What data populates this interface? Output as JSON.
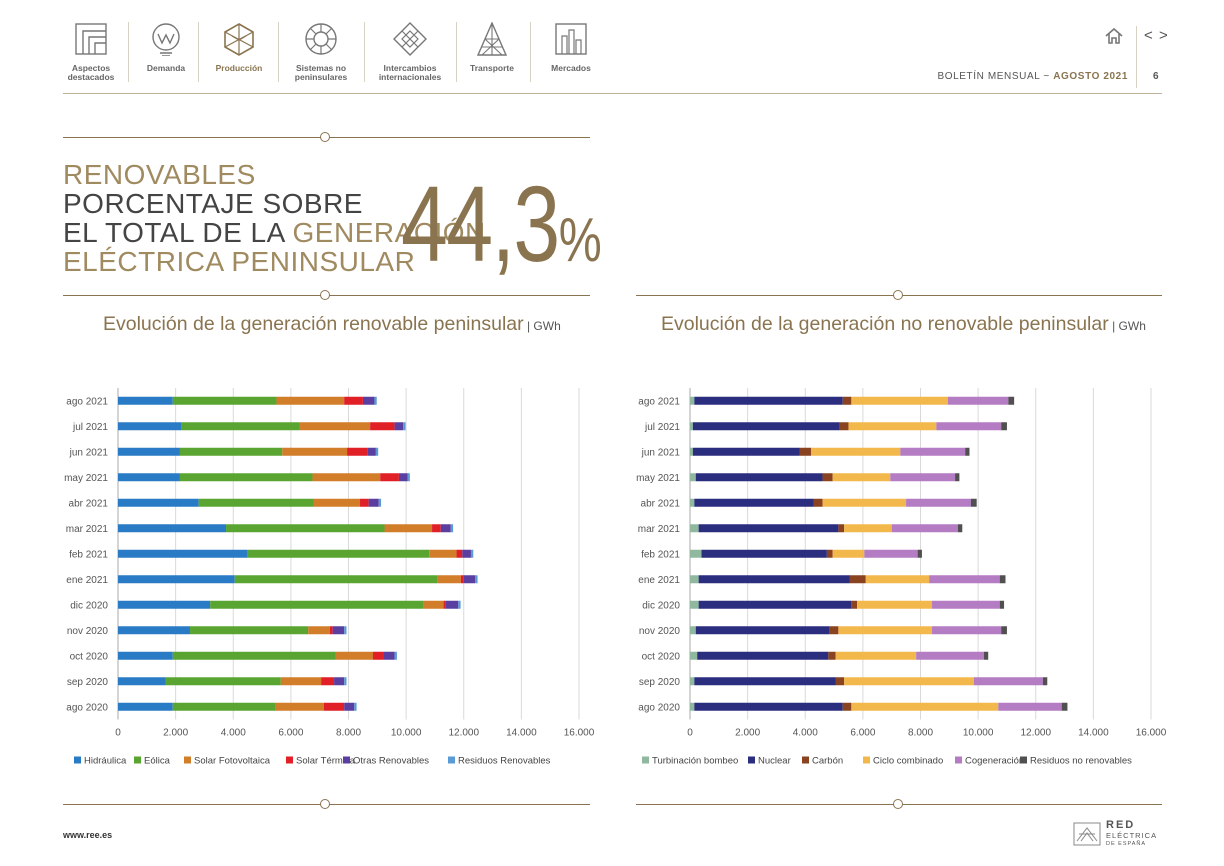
{
  "nav": {
    "items": [
      {
        "label1": "Aspectos",
        "label2": "destacados"
      },
      {
        "label1": "Demanda",
        "label2": ""
      },
      {
        "label1": "Producción",
        "label2": ""
      },
      {
        "label1": "Sistemas no",
        "label2": "peninsulares"
      },
      {
        "label1": "Intercambios",
        "label2": "internacionales"
      },
      {
        "label1": "Transporte",
        "label2": ""
      },
      {
        "label1": "Mercados",
        "label2": ""
      }
    ],
    "prev": "<",
    "next": ">"
  },
  "header": {
    "bulletin": "BOLETÍN MENSUAL ~ ",
    "month": "AGOSTO 2021",
    "page": "6"
  },
  "headline": {
    "line1": "RENOVABLES",
    "line2": "PORCENTAJE SOBRE",
    "line3a": "EL TOTAL DE LA ",
    "line3b": "GENERACIÓN",
    "line4": "ELÉCTRICA PENINSULAR",
    "value": "44,3",
    "pct": "%"
  },
  "footer": {
    "url": "www.ree.es",
    "logo1": "RED",
    "logo2": "ELÉCTRICA",
    "logo3": "DE ESPAÑA"
  },
  "colors": {
    "gold": "#8a7450",
    "hidraulica": "#2a7bc6",
    "eolica": "#5aa532",
    "solar_fv": "#d27d2a",
    "solar_termica": "#e01f27",
    "otras_renov": "#5a3fa0",
    "residuos_renov": "#5b9bd5",
    "turbinacion": "#8fb89f",
    "nuclear": "#2b2d7e",
    "carbon": "#8a4321",
    "ciclo": "#f2b84b",
    "cogeneracion": "#b37cc3",
    "residuos_no_renov": "#505050"
  },
  "chart_data": [
    {
      "type": "bar",
      "orientation": "horizontal",
      "stacked": true,
      "title": "Evolución de la generación renovable peninsular",
      "unit": "GWh",
      "categories": [
        "ago 2021",
        "jul 2021",
        "jun 2021",
        "may 2021",
        "abr 2021",
        "mar 2021",
        "feb 2021",
        "ene 2021",
        "dic 2020",
        "nov 2020",
        "oct 2020",
        "sep 2020",
        "ago 2020"
      ],
      "xlim": [
        0,
        16000
      ],
      "ticks": [
        "0",
        "2.000",
        "4.000",
        "6.000",
        "8.000",
        "10.000",
        "12.000",
        "14.000",
        "16.000"
      ],
      "series": [
        {
          "name": "Hidráulica",
          "color": "#2a7bc6",
          "values": [
            1900,
            2200,
            2150,
            2150,
            2800,
            3750,
            4500,
            4050,
            3200,
            2500,
            1900,
            1650,
            1900
          ]
        },
        {
          "name": "Eólica",
          "color": "#5aa532",
          "values": [
            3600,
            4100,
            3550,
            4600,
            4000,
            5500,
            6300,
            7050,
            7400,
            4100,
            5650,
            4000,
            3550
          ]
        },
        {
          "name": "Solar Fotovoltaica",
          "color": "#d27d2a",
          "values": [
            2350,
            2450,
            2250,
            2350,
            1600,
            1650,
            950,
            800,
            700,
            750,
            1300,
            1400,
            1700
          ]
        },
        {
          "name": "Solar Térmica",
          "color": "#e01f27",
          "values": [
            650,
            850,
            700,
            650,
            300,
            300,
            200,
            100,
            60,
            100,
            350,
            450,
            700
          ]
        },
        {
          "name": "Otras Renovables",
          "color": "#5a3fa0",
          "values": [
            400,
            300,
            300,
            300,
            350,
            350,
            300,
            400,
            450,
            400,
            400,
            350,
            350
          ]
        },
        {
          "name": "Residuos Renovables",
          "color": "#5b9bd5",
          "values": [
            80,
            80,
            80,
            80,
            80,
            80,
            80,
            80,
            80,
            80,
            80,
            80,
            80
          ]
        }
      ]
    },
    {
      "type": "bar",
      "orientation": "horizontal",
      "stacked": true,
      "title": "Evolución de la generación no renovable peninsular",
      "unit": "GWh",
      "categories": [
        "ago 2021",
        "jul 2021",
        "jun 2021",
        "may 2021",
        "abr 2021",
        "mar 2021",
        "feb 2021",
        "ene 2021",
        "dic 2020",
        "nov 2020",
        "oct 2020",
        "sep 2020",
        "ago 2020"
      ],
      "xlim": [
        0,
        16000
      ],
      "ticks": [
        "0",
        "2.000",
        "4.000",
        "6.000",
        "8.000",
        "10.000",
        "12.000",
        "14.000",
        "16.000"
      ],
      "series": [
        {
          "name": "Turbinación bombeo",
          "color": "#8fb89f",
          "values": [
            150,
            100,
            100,
            200,
            150,
            300,
            400,
            300,
            300,
            200,
            250,
            150,
            150
          ]
        },
        {
          "name": "Nuclear",
          "color": "#2b2d7e",
          "values": [
            5150,
            5100,
            3700,
            4400,
            4150,
            4850,
            4350,
            5250,
            5300,
            4650,
            4550,
            4900,
            5150
          ]
        },
        {
          "name": "Carbón",
          "color": "#8a4321",
          "values": [
            300,
            300,
            400,
            350,
            300,
            200,
            200,
            550,
            200,
            300,
            250,
            300,
            300
          ]
        },
        {
          "name": "Ciclo combinado",
          "color": "#f2b84b",
          "values": [
            3350,
            3050,
            3100,
            2000,
            2900,
            1650,
            1100,
            2200,
            2600,
            3250,
            2800,
            4500,
            5100
          ]
        },
        {
          "name": "Cogeneración",
          "color": "#b37cc3",
          "values": [
            2100,
            2250,
            2250,
            2250,
            2250,
            2300,
            1850,
            2450,
            2350,
            2400,
            2350,
            2400,
            2200
          ]
        },
        {
          "name": "Residuos no renovables",
          "color": "#505050",
          "values": [
            200,
            200,
            150,
            150,
            200,
            150,
            150,
            200,
            150,
            200,
            150,
            150,
            200
          ]
        }
      ]
    }
  ]
}
